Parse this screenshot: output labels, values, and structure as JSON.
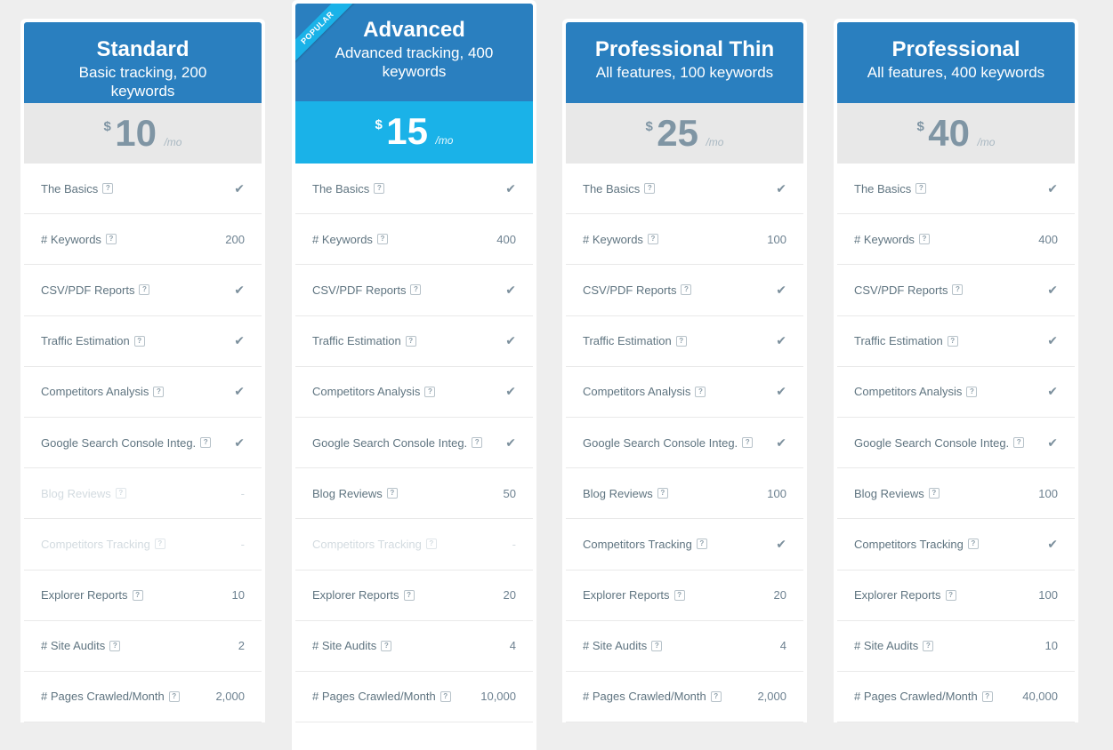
{
  "popular_label": "POPULAR",
  "currency_symbol": "$",
  "period": "/mo",
  "help_glyph": "?",
  "check_glyph": "✔",
  "plans": [
    {
      "name": "Standard",
      "description": "Basic tracking, 200 keywords",
      "price": "10",
      "features": [
        {
          "label": "The Basics",
          "value": "check",
          "enabled": true
        },
        {
          "label": "# Keywords",
          "value": "200",
          "enabled": true
        },
        {
          "label": "CSV/PDF Reports",
          "value": "check",
          "enabled": true
        },
        {
          "label": "Traffic Estimation",
          "value": "check",
          "enabled": true
        },
        {
          "label": "Competitors Analysis",
          "value": "check",
          "enabled": true
        },
        {
          "label": "Google Search Console Integ.",
          "value": "check",
          "enabled": true
        },
        {
          "label": "Blog Reviews",
          "value": "-",
          "enabled": false
        },
        {
          "label": "Competitors Tracking",
          "value": "-",
          "enabled": false
        },
        {
          "label": "Explorer Reports",
          "value": "10",
          "enabled": true
        },
        {
          "label": "# Site Audits",
          "value": "2",
          "enabled": true
        },
        {
          "label": "# Pages Crawled/Month",
          "value": "2,000",
          "enabled": true
        }
      ]
    },
    {
      "name": "Advanced",
      "description": "Advanced tracking, 400 keywords",
      "price": "15",
      "popular": true,
      "features": [
        {
          "label": "The Basics",
          "value": "check",
          "enabled": true
        },
        {
          "label": "# Keywords",
          "value": "400",
          "enabled": true
        },
        {
          "label": "CSV/PDF Reports",
          "value": "check",
          "enabled": true
        },
        {
          "label": "Traffic Estimation",
          "value": "check",
          "enabled": true
        },
        {
          "label": "Competitors Analysis",
          "value": "check",
          "enabled": true
        },
        {
          "label": "Google Search Console Integ.",
          "value": "check",
          "enabled": true
        },
        {
          "label": "Blog Reviews",
          "value": "50",
          "enabled": true
        },
        {
          "label": "Competitors Tracking",
          "value": "-",
          "enabled": false
        },
        {
          "label": "Explorer Reports",
          "value": "20",
          "enabled": true
        },
        {
          "label": "# Site Audits",
          "value": "4",
          "enabled": true
        },
        {
          "label": "# Pages Crawled/Month",
          "value": "10,000",
          "enabled": true
        }
      ]
    },
    {
      "name": "Professional Thin",
      "description": "All features, 100 keywords",
      "price": "25",
      "features": [
        {
          "label": "The Basics",
          "value": "check",
          "enabled": true
        },
        {
          "label": "# Keywords",
          "value": "100",
          "enabled": true
        },
        {
          "label": "CSV/PDF Reports",
          "value": "check",
          "enabled": true
        },
        {
          "label": "Traffic Estimation",
          "value": "check",
          "enabled": true
        },
        {
          "label": "Competitors Analysis",
          "value": "check",
          "enabled": true
        },
        {
          "label": "Google Search Console Integ.",
          "value": "check",
          "enabled": true
        },
        {
          "label": "Blog Reviews",
          "value": "100",
          "enabled": true
        },
        {
          "label": "Competitors Tracking",
          "value": "check",
          "enabled": true
        },
        {
          "label": "Explorer Reports",
          "value": "20",
          "enabled": true
        },
        {
          "label": "# Site Audits",
          "value": "4",
          "enabled": true
        },
        {
          "label": "# Pages Crawled/Month",
          "value": "2,000",
          "enabled": true
        }
      ]
    },
    {
      "name": "Professional",
      "description": "All features, 400 keywords",
      "price": "40",
      "features": [
        {
          "label": "The Basics",
          "value": "check",
          "enabled": true
        },
        {
          "label": "# Keywords",
          "value": "400",
          "enabled": true
        },
        {
          "label": "CSV/PDF Reports",
          "value": "check",
          "enabled": true
        },
        {
          "label": "Traffic Estimation",
          "value": "check",
          "enabled": true
        },
        {
          "label": "Competitors Analysis",
          "value": "check",
          "enabled": true
        },
        {
          "label": "Google Search Console Integ.",
          "value": "check",
          "enabled": true
        },
        {
          "label": "Blog Reviews",
          "value": "100",
          "enabled": true
        },
        {
          "label": "Competitors Tracking",
          "value": "check",
          "enabled": true
        },
        {
          "label": "Explorer Reports",
          "value": "100",
          "enabled": true
        },
        {
          "label": "# Site Audits",
          "value": "10",
          "enabled": true
        },
        {
          "label": "# Pages Crawled/Month",
          "value": "40,000",
          "enabled": true
        }
      ]
    }
  ]
}
